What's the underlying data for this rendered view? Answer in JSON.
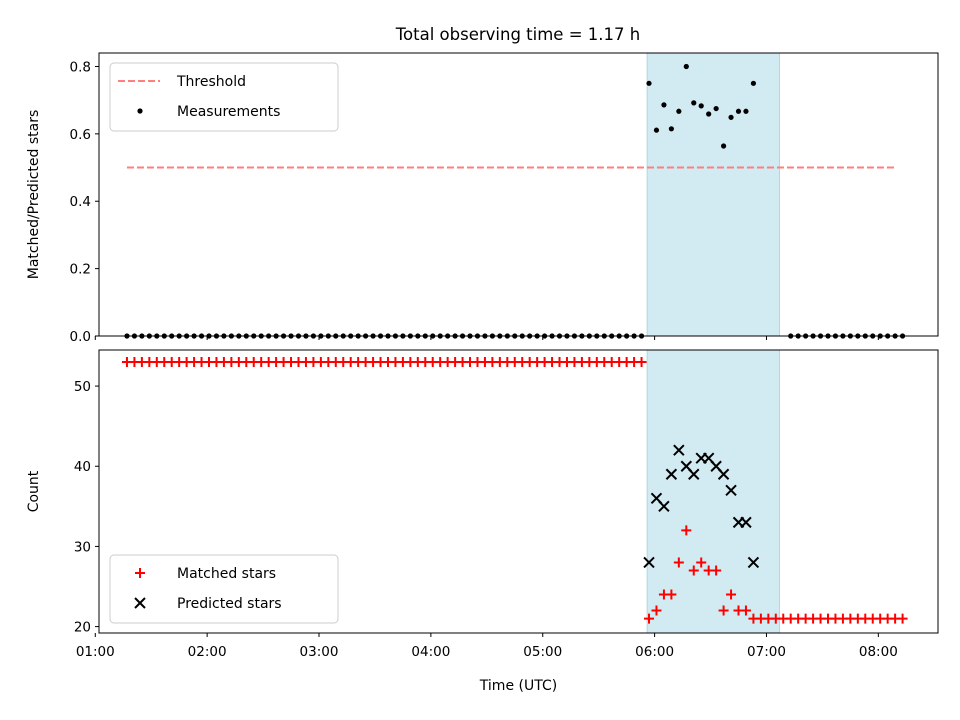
{
  "figure": {
    "title": "Total observing time = 1.17 h",
    "shaded_region_color": "#add8e6"
  },
  "chart_data": [
    {
      "type": "scatter",
      "panel": "top",
      "title": "Total observing time = 1.17 h",
      "xlabel": "",
      "ylabel": "Matched/Predicted stars",
      "ylim": [
        0,
        0.84
      ],
      "yticks": [
        "0.0",
        "0.2",
        "0.4",
        "0.6",
        "0.8"
      ],
      "x_is_time": true,
      "legend": {
        "location": "upper-left",
        "entries": [
          "Threshold",
          "Measurements"
        ]
      },
      "shaded_interval": {
        "start": "05:56",
        "end": "07:07"
      },
      "threshold": {
        "name": "Threshold",
        "value": 0.5,
        "x_start": "01:17",
        "x_end": "08:10",
        "color": "#ff7f7f",
        "style": "dashed"
      },
      "series": [
        {
          "name": "Measurements",
          "color": "#000000",
          "marker": "dot",
          "points": [
            [
              "01:17",
              0
            ],
            [
              "01:21",
              0
            ],
            [
              "01:25",
              0
            ],
            [
              "01:29",
              0
            ],
            [
              "01:33",
              0
            ],
            [
              "01:37",
              0
            ],
            [
              "01:41",
              0
            ],
            [
              "01:45",
              0
            ],
            [
              "01:49",
              0
            ],
            [
              "01:53",
              0
            ],
            [
              "01:57",
              0
            ],
            [
              "02:01",
              0
            ],
            [
              "02:05",
              0
            ],
            [
              "02:09",
              0
            ],
            [
              "02:13",
              0
            ],
            [
              "02:17",
              0
            ],
            [
              "02:21",
              0
            ],
            [
              "02:25",
              0
            ],
            [
              "02:29",
              0
            ],
            [
              "02:33",
              0
            ],
            [
              "02:37",
              0
            ],
            [
              "02:41",
              0
            ],
            [
              "02:45",
              0
            ],
            [
              "02:49",
              0
            ],
            [
              "02:53",
              0
            ],
            [
              "02:57",
              0
            ],
            [
              "03:01",
              0
            ],
            [
              "03:05",
              0
            ],
            [
              "03:09",
              0
            ],
            [
              "03:13",
              0
            ],
            [
              "03:17",
              0
            ],
            [
              "03:21",
              0
            ],
            [
              "03:25",
              0
            ],
            [
              "03:29",
              0
            ],
            [
              "03:33",
              0
            ],
            [
              "03:37",
              0
            ],
            [
              "03:41",
              0
            ],
            [
              "03:45",
              0
            ],
            [
              "03:49",
              0
            ],
            [
              "03:53",
              0
            ],
            [
              "03:57",
              0
            ],
            [
              "04:01",
              0
            ],
            [
              "04:05",
              0
            ],
            [
              "04:09",
              0
            ],
            [
              "04:13",
              0
            ],
            [
              "04:17",
              0
            ],
            [
              "04:21",
              0
            ],
            [
              "04:25",
              0
            ],
            [
              "04:29",
              0
            ],
            [
              "04:33",
              0
            ],
            [
              "04:37",
              0
            ],
            [
              "04:41",
              0
            ],
            [
              "04:45",
              0
            ],
            [
              "04:49",
              0
            ],
            [
              "04:53",
              0
            ],
            [
              "04:57",
              0
            ],
            [
              "05:01",
              0
            ],
            [
              "05:05",
              0
            ],
            [
              "05:09",
              0
            ],
            [
              "05:13",
              0
            ],
            [
              "05:17",
              0
            ],
            [
              "05:21",
              0
            ],
            [
              "05:25",
              0
            ],
            [
              "05:29",
              0
            ],
            [
              "05:33",
              0
            ],
            [
              "05:37",
              0
            ],
            [
              "05:41",
              0
            ],
            [
              "05:45",
              0
            ],
            [
              "05:49",
              0
            ],
            [
              "05:53",
              0
            ],
            [
              "05:57",
              0.75
            ],
            [
              "06:01",
              0.611
            ],
            [
              "06:05",
              0.686
            ],
            [
              "06:09",
              0.615
            ],
            [
              "06:13",
              0.667
            ],
            [
              "06:17",
              0.8
            ],
            [
              "06:21",
              0.692
            ],
            [
              "06:25",
              0.683
            ],
            [
              "06:29",
              0.659
            ],
            [
              "06:33",
              0.675
            ],
            [
              "06:37",
              0.564
            ],
            [
              "06:41",
              0.649
            ],
            [
              "06:45",
              0.667
            ],
            [
              "06:49",
              0.667
            ],
            [
              "06:53",
              0.75
            ],
            [
              "07:13",
              0
            ],
            [
              "07:17",
              0
            ],
            [
              "07:21",
              0
            ],
            [
              "07:25",
              0
            ],
            [
              "07:29",
              0
            ],
            [
              "07:33",
              0
            ],
            [
              "07:37",
              0
            ],
            [
              "07:41",
              0
            ],
            [
              "07:45",
              0
            ],
            [
              "07:49",
              0
            ],
            [
              "07:53",
              0
            ],
            [
              "07:57",
              0
            ],
            [
              "08:01",
              0
            ],
            [
              "08:05",
              0
            ],
            [
              "08:09",
              0
            ],
            [
              "08:13",
              0
            ]
          ]
        }
      ]
    },
    {
      "type": "scatter",
      "panel": "bottom",
      "xlabel": "Time (UTC)",
      "ylabel": "Count",
      "ylim": [
        19.2,
        54.5
      ],
      "yticks": [
        "20",
        "30",
        "40",
        "50"
      ],
      "xlim": [
        "01:02",
        "08:32"
      ],
      "xticks": [
        "01:00",
        "02:00",
        "03:00",
        "04:00",
        "05:00",
        "06:00",
        "07:00",
        "08:00"
      ],
      "x_is_time": true,
      "legend": {
        "location": "lower-left",
        "entries": [
          "Matched stars",
          "Predicted stars"
        ]
      },
      "shaded_interval": {
        "start": "05:56",
        "end": "07:07"
      },
      "series": [
        {
          "name": "Matched stars",
          "color": "#ff0000",
          "marker": "plus",
          "points": [
            [
              "01:17",
              53
            ],
            [
              "01:21",
              53
            ],
            [
              "01:25",
              53
            ],
            [
              "01:29",
              53
            ],
            [
              "01:33",
              53
            ],
            [
              "01:37",
              53
            ],
            [
              "01:41",
              53
            ],
            [
              "01:45",
              53
            ],
            [
              "01:49",
              53
            ],
            [
              "01:53",
              53
            ],
            [
              "01:57",
              53
            ],
            [
              "02:01",
              53
            ],
            [
              "02:05",
              53
            ],
            [
              "02:09",
              53
            ],
            [
              "02:13",
              53
            ],
            [
              "02:17",
              53
            ],
            [
              "02:21",
              53
            ],
            [
              "02:25",
              53
            ],
            [
              "02:29",
              53
            ],
            [
              "02:33",
              53
            ],
            [
              "02:37",
              53
            ],
            [
              "02:41",
              53
            ],
            [
              "02:45",
              53
            ],
            [
              "02:49",
              53
            ],
            [
              "02:53",
              53
            ],
            [
              "02:57",
              53
            ],
            [
              "03:01",
              53
            ],
            [
              "03:05",
              53
            ],
            [
              "03:09",
              53
            ],
            [
              "03:13",
              53
            ],
            [
              "03:17",
              53
            ],
            [
              "03:21",
              53
            ],
            [
              "03:25",
              53
            ],
            [
              "03:29",
              53
            ],
            [
              "03:33",
              53
            ],
            [
              "03:37",
              53
            ],
            [
              "03:41",
              53
            ],
            [
              "03:45",
              53
            ],
            [
              "03:49",
              53
            ],
            [
              "03:53",
              53
            ],
            [
              "03:57",
              53
            ],
            [
              "04:01",
              53
            ],
            [
              "04:05",
              53
            ],
            [
              "04:09",
              53
            ],
            [
              "04:13",
              53
            ],
            [
              "04:17",
              53
            ],
            [
              "04:21",
              53
            ],
            [
              "04:25",
              53
            ],
            [
              "04:29",
              53
            ],
            [
              "04:33",
              53
            ],
            [
              "04:37",
              53
            ],
            [
              "04:41",
              53
            ],
            [
              "04:45",
              53
            ],
            [
              "04:49",
              53
            ],
            [
              "04:53",
              53
            ],
            [
              "04:57",
              53
            ],
            [
              "05:01",
              53
            ],
            [
              "05:05",
              53
            ],
            [
              "05:09",
              53
            ],
            [
              "05:13",
              53
            ],
            [
              "05:17",
              53
            ],
            [
              "05:21",
              53
            ],
            [
              "05:25",
              53
            ],
            [
              "05:29",
              53
            ],
            [
              "05:33",
              53
            ],
            [
              "05:37",
              53
            ],
            [
              "05:41",
              53
            ],
            [
              "05:45",
              53
            ],
            [
              "05:49",
              53
            ],
            [
              "05:53",
              53
            ],
            [
              "05:57",
              21
            ],
            [
              "06:01",
              22
            ],
            [
              "06:05",
              24
            ],
            [
              "06:09",
              24
            ],
            [
              "06:13",
              28
            ],
            [
              "06:17",
              32
            ],
            [
              "06:21",
              27
            ],
            [
              "06:25",
              28
            ],
            [
              "06:29",
              27
            ],
            [
              "06:33",
              27
            ],
            [
              "06:37",
              22
            ],
            [
              "06:41",
              24
            ],
            [
              "06:45",
              22
            ],
            [
              "06:49",
              22
            ],
            [
              "06:53",
              21
            ],
            [
              "06:57",
              21
            ],
            [
              "07:01",
              21
            ],
            [
              "07:05",
              21
            ],
            [
              "07:09",
              21
            ],
            [
              "07:13",
              21
            ],
            [
              "07:17",
              21
            ],
            [
              "07:21",
              21
            ],
            [
              "07:25",
              21
            ],
            [
              "07:29",
              21
            ],
            [
              "07:33",
              21
            ],
            [
              "07:37",
              21
            ],
            [
              "07:41",
              21
            ],
            [
              "07:45",
              21
            ],
            [
              "07:49",
              21
            ],
            [
              "07:53",
              21
            ],
            [
              "07:57",
              21
            ],
            [
              "08:01",
              21
            ],
            [
              "08:05",
              21
            ],
            [
              "08:09",
              21
            ],
            [
              "08:13",
              21
            ]
          ]
        },
        {
          "name": "Predicted stars",
          "color": "#000000",
          "marker": "x",
          "points": [
            [
              "05:57",
              28
            ],
            [
              "06:01",
              36
            ],
            [
              "06:05",
              35
            ],
            [
              "06:09",
              39
            ],
            [
              "06:13",
              42
            ],
            [
              "06:17",
              40
            ],
            [
              "06:21",
              39
            ],
            [
              "06:25",
              41
            ],
            [
              "06:29",
              41
            ],
            [
              "06:33",
              40
            ],
            [
              "06:37",
              39
            ],
            [
              "06:41",
              37
            ],
            [
              "06:45",
              33
            ],
            [
              "06:49",
              33
            ],
            [
              "06:53",
              28
            ]
          ]
        }
      ]
    }
  ]
}
